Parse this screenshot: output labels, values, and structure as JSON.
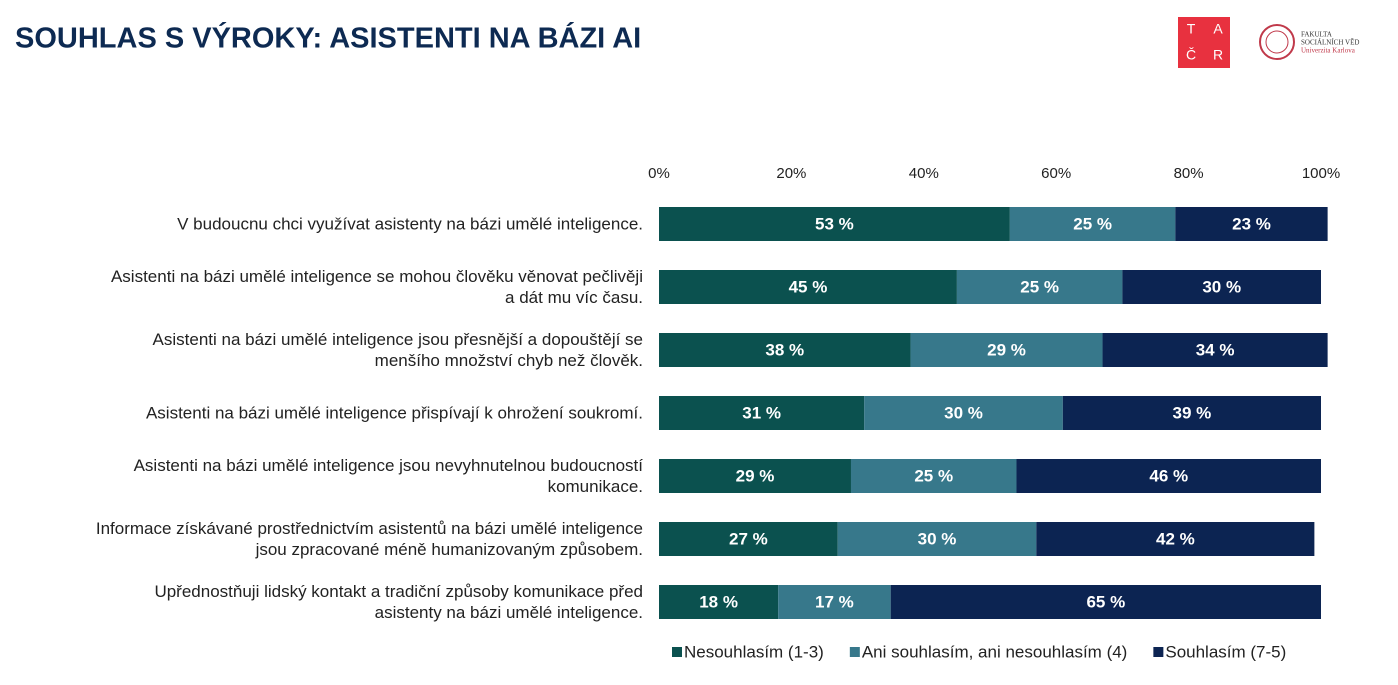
{
  "chart_data": {
    "type": "stacked-barh",
    "title": "SOUHLAS S VÝROKY: ASISTENTI NA BÁZI AI",
    "categories": [
      "V budoucnu chci využívat asistenty na bázi umělé inteligence.",
      "Asistenti na bázi umělé inteligence se mohou člověku věnovat pečlivěji\na dát mu víc času.",
      "Asistenti na bázi umělé inteligence jsou přesnější a dopouštějí se\nmenšího množství chyb než člověk.",
      "Asistenti na bázi umělé inteligence přispívají k ohrožení soukromí.",
      "Asistenti na bázi umělé inteligence jsou nevyhnutelnou budoucností\nkomunikace.",
      "Informace získávané prostřednictvím asistentů na bázi umělé inteligence\njsou zpracované méně humanizovaným způsobem.",
      "Upřednostňuji lidský kontakt a tradiční způsoby komunikace před\nasistenty na bázi umělé inteligence."
    ],
    "series": [
      {
        "name": "Nesouhlasím (1-3)",
        "color": "#0b514f",
        "values": [
          53,
          45,
          38,
          31,
          29,
          27,
          18
        ],
        "value_labels": [
          "53 %",
          "45 %",
          "38 %",
          "31 %",
          "29 %",
          "27 %",
          "18 %"
        ]
      },
      {
        "name": "Ani souhlasím, ani nesouhlasím (4)",
        "color": "#37788b",
        "values": [
          25,
          25,
          29,
          30,
          25,
          30,
          17
        ],
        "value_labels": [
          "25 %",
          "25 %",
          "29 %",
          "30 %",
          "25 %",
          "30 %",
          "17 %"
        ]
      },
      {
        "name": "Souhlasím (7-5)",
        "color": "#0c2452",
        "values": [
          23,
          30,
          34,
          39,
          46,
          42,
          65
        ],
        "value_labels": [
          "23 %",
          "30 %",
          "34 %",
          "39 %",
          "46 %",
          "42 %",
          "65 %"
        ]
      }
    ],
    "xlim": [
      0,
      100
    ],
    "xticks": [
      {
        "value": 0,
        "label": "0%"
      },
      {
        "value": 20,
        "label": "20%"
      },
      {
        "value": 40,
        "label": "40%"
      },
      {
        "value": 60,
        "label": "60%"
      },
      {
        "value": 80,
        "label": "80%"
      },
      {
        "value": 100,
        "label": "100%"
      }
    ],
    "legend": "bottom"
  },
  "logos": {
    "tacr": [
      "T",
      "A",
      "Č",
      "R"
    ],
    "fsv": [
      "FAKULTA",
      "SOCIÁLNÍCH VĚD",
      "Univerzita Karlova"
    ]
  }
}
